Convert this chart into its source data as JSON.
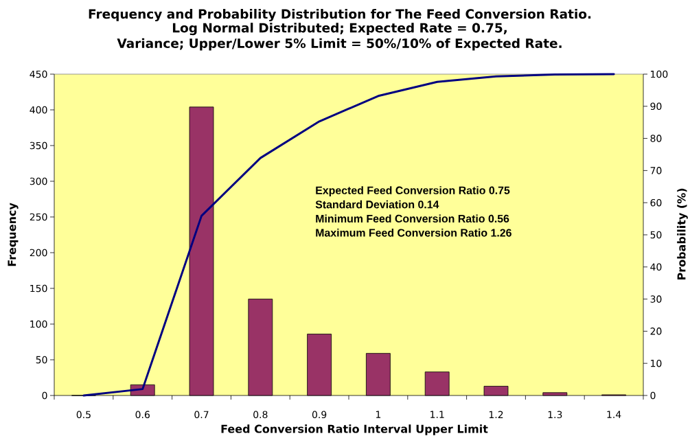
{
  "chart_data": {
    "type": "bar",
    "title": "Frequency and Probability Distribution for The Feed Conversion Ratio.",
    "subtitle": "Log Normal Distributed; Expected Rate = 0.75, Variance; Upper/Lower 5% Limit = 50%/10% of Expected Rate.",
    "xlabel": "Feed Conversion Ratio Interval Upper Limit",
    "ylabel": "Frequency",
    "y2label": "Probability (%)",
    "categories": [
      "0.5",
      "0.6",
      "0.7",
      "0.8",
      "0.9",
      "1",
      "1.1",
      "1.2",
      "1.3",
      "1.4"
    ],
    "series": [
      {
        "type": "bar",
        "color": "#993366",
        "values": [
          0,
          15,
          404,
          135,
          86,
          59,
          33,
          13,
          4,
          1
        ]
      },
      {
        "type": "line",
        "axis": "y2",
        "color": "#000080",
        "values": [
          0,
          2,
          55.9,
          73.9,
          85.3,
          93.2,
          97.6,
          99.3,
          99.9,
          100
        ]
      }
    ],
    "ylim": [
      0,
      450
    ],
    "yticks": [
      0,
      50,
      100,
      150,
      200,
      250,
      300,
      350,
      400,
      450
    ],
    "y2lim": [
      0,
      100
    ],
    "y2ticks": [
      0,
      10,
      20,
      30,
      40,
      50,
      60,
      70,
      80,
      90,
      100
    ],
    "annotations": [
      "Expected Feed Conversion Ratio 0.75",
      "Standard Deviation 0.14",
      "Minimum Feed Conversion Ratio 0.56",
      "Maximum Feed Conversion Ratio 1.26"
    ]
  }
}
